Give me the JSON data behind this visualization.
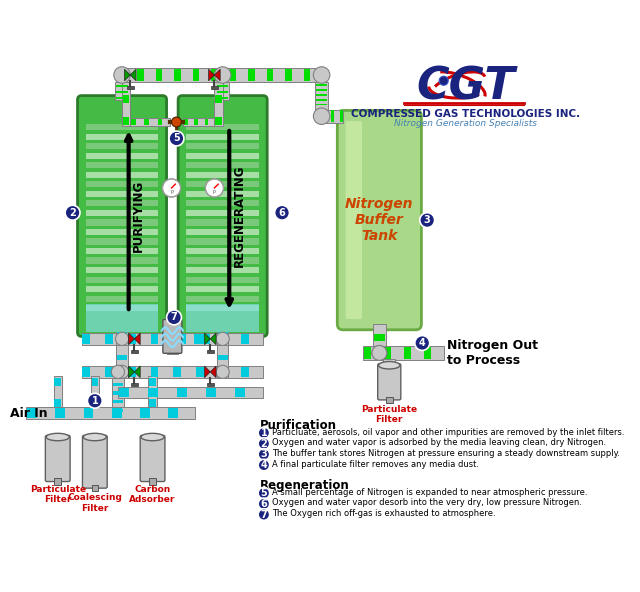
{
  "bg_color": "#ffffff",
  "pipe_col": "#c8c8c8",
  "pipe_edge": "#808080",
  "green_stripe": "#00dd00",
  "cyan_stripe": "#00ccdd",
  "valve_red": "#cc0000",
  "valve_green": "#009900",
  "circle_blue": "#1a237e",
  "tank_green": "#90d870",
  "tank_green_light": "#c8eeaa",
  "tank_edge": "#5aaa35",
  "buf_tank_green": "#a8d888",
  "buf_tank_light": "#d0eeaa",
  "buf_tank_edge": "#6aaa45",
  "col_stripe_light": "#c0e8c0",
  "col_stripe_dark": "#50aa50",
  "cyan_col": "#80dddd",
  "purification_title": "Purification",
  "regeneration_title": "Regeneration",
  "purification_items": [
    "Particluate, aerosols, oil vapor and other impurities are removed by the inlet filters.",
    "Oxygen and water vapor is adsorbed by the media leaving clean, dry Nitrogen.",
    "The buffer tank stores Nitrogen at pressure ensuring a steady downstream supply.",
    "A final particulate filter removes any media dust."
  ],
  "regeneration_items": [
    "A small percentage of Nitrogen is expanded to near atmospheric pressure.",
    "Oxygen and water vapor desorb into the very dry, low pressure Nitrogen.",
    "The Oxygen rich off-gas is exhausted to atmosphere."
  ],
  "air_in": "Air In",
  "pf_bottom": "Particulate\nFilter",
  "coal_filter": "Coalescing\nFilter",
  "carbon_ads": "Carbon\nAdsorber",
  "nitrogen_buf": "Nitrogen\nBuffer\nTank",
  "pf_right": "Particulate\nFilter",
  "n2_out": "Nitrogen Out\nto Process",
  "purifying": "PURIFYING",
  "regenerating": "REGENERATING",
  "cgt1": "COMPRESSED GAS TECHNOLOGIES INC.",
  "cgt2": "Nitrogen Generation Specialists"
}
